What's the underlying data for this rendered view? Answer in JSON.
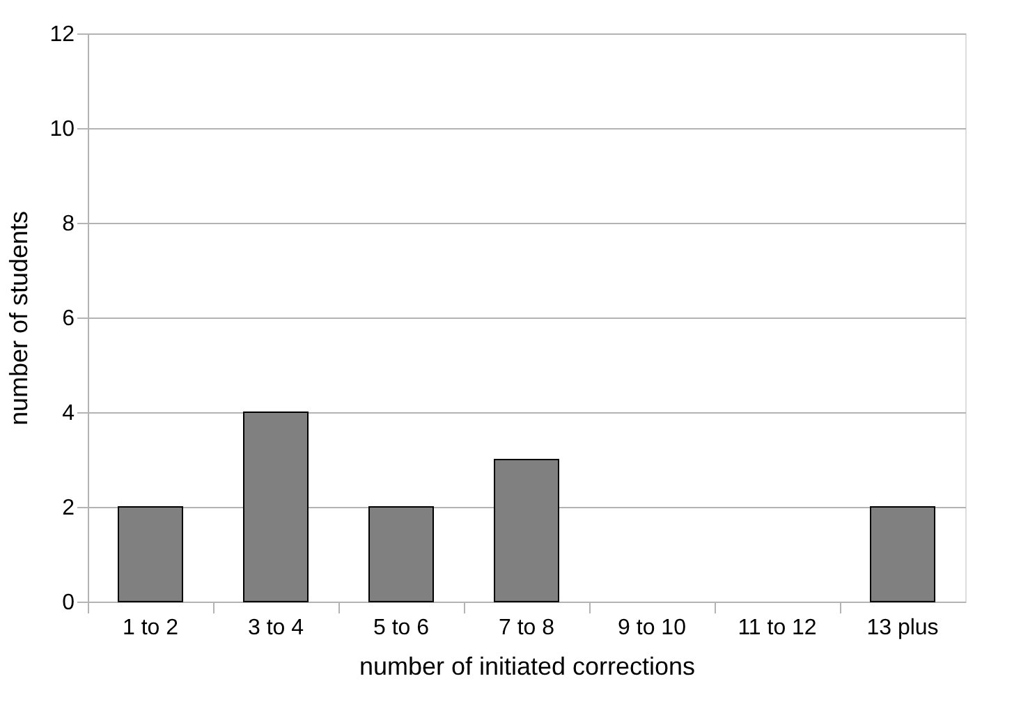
{
  "chart_data": {
    "type": "bar",
    "xlabel": "number of initiated corrections",
    "ylabel": "number of students",
    "categories": [
      "1 to 2",
      "3 to 4",
      "5 to 6",
      "7 to 8",
      "9 to 10",
      "11 to 12",
      "13 plus"
    ],
    "values": [
      2,
      4,
      2,
      3,
      null,
      null,
      2
    ],
    "color": "#808080",
    "ylim": [
      0,
      12
    ],
    "yticks": [
      0,
      2,
      4,
      6,
      8,
      10,
      12
    ],
    "grid": "y"
  }
}
